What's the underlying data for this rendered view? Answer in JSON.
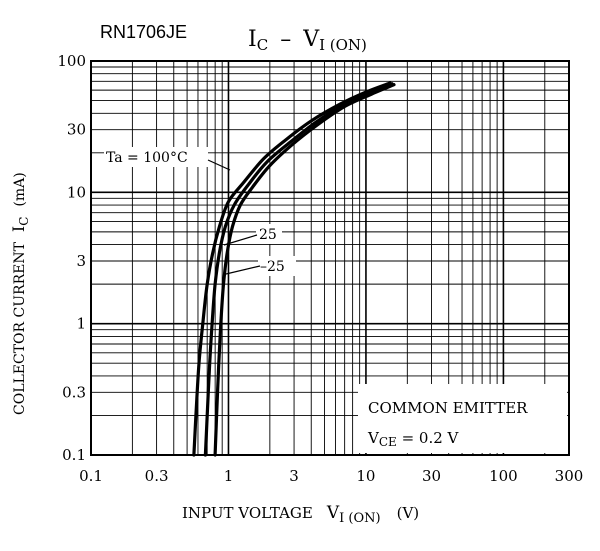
{
  "chart_data": {
    "type": "line",
    "part_number": "RN1706JE",
    "title": {
      "main": "I",
      "main_sub": "C",
      "sep": "–",
      "right": "V",
      "right_sub": "I (ON)"
    },
    "ylabel": {
      "text": "COLLECTOR CURRENT",
      "symbol": "I",
      "symbol_sub": "C",
      "unit": "(mA)"
    },
    "xlabel": {
      "text": "INPUT VOLTAGE",
      "symbol": "V",
      "symbol_sub": "I (ON)",
      "unit": "(V)"
    },
    "x_scale": "log",
    "y_scale": "log",
    "xlim": [
      0.1,
      300
    ],
    "ylim": [
      0.1,
      100
    ],
    "x_ticks": [
      {
        "value": 0.1,
        "label": "0.1"
      },
      {
        "value": 0.3,
        "label": "0.3"
      },
      {
        "value": 1,
        "label": "1"
      },
      {
        "value": 3,
        "label": "3"
      },
      {
        "value": 10,
        "label": "10"
      },
      {
        "value": 30,
        "label": "30"
      },
      {
        "value": 100,
        "label": "100"
      },
      {
        "value": 300,
        "label": "300"
      }
    ],
    "y_ticks": [
      {
        "value": 0.1,
        "label": "0.1"
      },
      {
        "value": 0.3,
        "label": "0.3"
      },
      {
        "value": 1,
        "label": "1"
      },
      {
        "value": 3,
        "label": "3"
      },
      {
        "value": 10,
        "label": "10"
      },
      {
        "value": 30,
        "label": "30"
      },
      {
        "value": 100,
        "label": "100"
      }
    ],
    "grid": true,
    "series": [
      {
        "name": "Ta = 100°C",
        "x": [
          0.56,
          0.58,
          0.61,
          0.65,
          0.7,
          0.77,
          0.86,
          1.0,
          1.3,
          1.8,
          2.6,
          4.0,
          6.5,
          10,
          15
        ],
        "y": [
          0.1,
          0.2,
          0.5,
          1.0,
          2.0,
          3.5,
          5.5,
          8.5,
          12,
          18,
          25,
          35,
          47,
          58,
          68
        ]
      },
      {
        "name": "25",
        "x": [
          0.68,
          0.7,
          0.73,
          0.76,
          0.8,
          0.86,
          0.95,
          1.1,
          1.4,
          1.9,
          2.8,
          4.3,
          6.8,
          10.5,
          15.5
        ],
        "y": [
          0.1,
          0.2,
          0.5,
          1.0,
          2.0,
          3.5,
          5.5,
          8.0,
          11.5,
          17,
          24,
          34,
          46,
          57,
          67
        ]
      },
      {
        "name": "–25",
        "x": [
          0.8,
          0.82,
          0.85,
          0.88,
          0.92,
          0.98,
          1.07,
          1.22,
          1.5,
          2.0,
          2.9,
          4.5,
          7.0,
          11,
          16
        ],
        "y": [
          0.1,
          0.2,
          0.5,
          1.0,
          2.0,
          3.5,
          5.5,
          8.0,
          11,
          16,
          23,
          33,
          45,
          56,
          66
        ]
      }
    ],
    "annotation": {
      "line1": "COMMON EMITTER",
      "line2_symbol": "V",
      "line2_sub": "CE",
      "line2_rest": " = 0.2 V"
    }
  }
}
